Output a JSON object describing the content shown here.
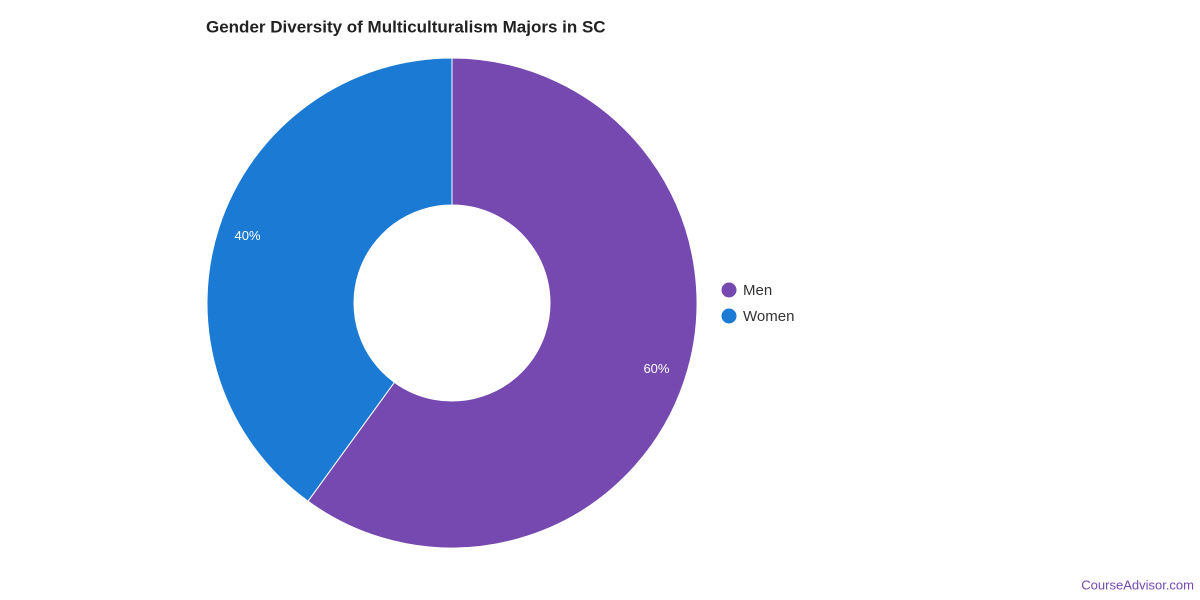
{
  "chart_data": {
    "type": "donut",
    "title": "Gender Diversity of Multiculturalism Majors in SC",
    "categories": [
      "Men",
      "Women"
    ],
    "values": [
      60,
      40
    ],
    "value_labels": [
      "60%",
      "40%"
    ],
    "colors": [
      "#7549b0",
      "#1a7ad4"
    ],
    "source": "CourseAdvisor.com"
  }
}
